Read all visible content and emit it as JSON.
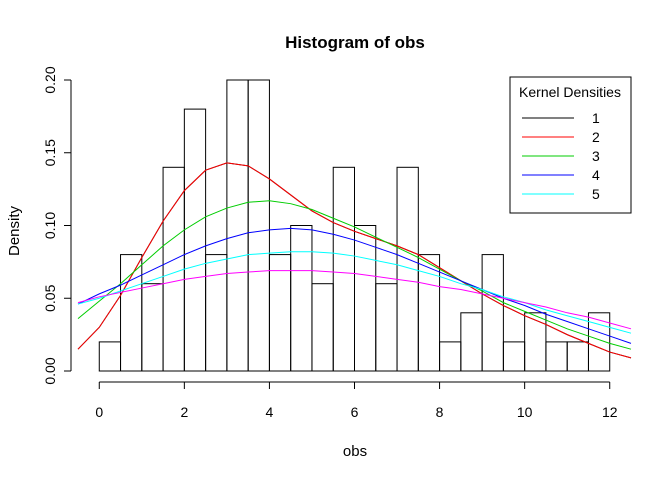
{
  "chart_data": {
    "type": "bar",
    "title": "Histogram of obs",
    "xlabel": "obs",
    "ylabel": "Density",
    "xlim": [
      -0.5,
      12.5
    ],
    "ylim": [
      0,
      0.2
    ],
    "x_ticks": [
      0,
      2,
      4,
      6,
      8,
      10,
      12
    ],
    "y_ticks": [
      0.0,
      0.05,
      0.1,
      0.15,
      0.2
    ],
    "y_tick_labels": [
      "0.00",
      "0.05",
      "0.10",
      "0.15",
      "0.20"
    ],
    "bin_width": 0.5,
    "bins": [
      {
        "x0": 0.0,
        "x1": 0.5,
        "density": 0.02
      },
      {
        "x0": 0.5,
        "x1": 1.0,
        "density": 0.08
      },
      {
        "x0": 1.0,
        "x1": 1.5,
        "density": 0.06
      },
      {
        "x0": 1.5,
        "x1": 2.0,
        "density": 0.14
      },
      {
        "x0": 2.0,
        "x1": 2.5,
        "density": 0.18
      },
      {
        "x0": 2.5,
        "x1": 3.0,
        "density": 0.08
      },
      {
        "x0": 3.0,
        "x1": 3.5,
        "density": 0.2
      },
      {
        "x0": 3.5,
        "x1": 4.0,
        "density": 0.2
      },
      {
        "x0": 4.0,
        "x1": 4.5,
        "density": 0.08
      },
      {
        "x0": 4.5,
        "x1": 5.0,
        "density": 0.1
      },
      {
        "x0": 5.0,
        "x1": 5.5,
        "density": 0.06
      },
      {
        "x0": 5.5,
        "x1": 6.0,
        "density": 0.14
      },
      {
        "x0": 6.0,
        "x1": 6.5,
        "density": 0.1
      },
      {
        "x0": 6.5,
        "x1": 7.0,
        "density": 0.06
      },
      {
        "x0": 7.0,
        "x1": 7.5,
        "density": 0.14
      },
      {
        "x0": 7.5,
        "x1": 8.0,
        "density": 0.08
      },
      {
        "x0": 8.0,
        "x1": 8.5,
        "density": 0.02
      },
      {
        "x0": 8.5,
        "x1": 9.0,
        "density": 0.04
      },
      {
        "x0": 9.0,
        "x1": 9.5,
        "density": 0.08
      },
      {
        "x0": 9.5,
        "x1": 10.0,
        "density": 0.02
      },
      {
        "x0": 10.0,
        "x1": 10.5,
        "density": 0.04
      },
      {
        "x0": 10.5,
        "x1": 11.0,
        "density": 0.02
      },
      {
        "x0": 11.0,
        "x1": 11.5,
        "density": 0.02
      },
      {
        "x0": 11.5,
        "x1": 12.0,
        "density": 0.04
      }
    ],
    "legend": {
      "title": "Kernel Densities",
      "placement": "top-right"
    },
    "series": [
      {
        "name": "1",
        "color": "#000000",
        "type": "line",
        "x": [
          -0.5,
          0,
          0.5,
          1,
          1.5,
          2,
          2.5,
          3,
          3.5,
          4,
          4.5,
          5,
          5.5,
          6,
          6.5,
          7,
          7.5,
          8,
          8.5,
          9,
          9.5,
          10,
          10.5,
          11,
          11.5,
          12,
          12.5
        ],
        "y": [
          0.015,
          0.03,
          0.052,
          0.078,
          0.103,
          0.124,
          0.138,
          0.143,
          0.141,
          0.132,
          0.121,
          0.11,
          0.102,
          0.096,
          0.091,
          0.086,
          0.08,
          0.071,
          0.062,
          0.053,
          0.045,
          0.038,
          0.032,
          0.025,
          0.019,
          0.013,
          0.009
        ]
      },
      {
        "name": "2",
        "color": "#ff0000",
        "type": "line",
        "x": [
          -0.5,
          0,
          0.5,
          1,
          1.5,
          2,
          2.5,
          3,
          3.5,
          4,
          4.5,
          5,
          5.5,
          6,
          6.5,
          7,
          7.5,
          8,
          8.5,
          9,
          9.5,
          10,
          10.5,
          11,
          11.5,
          12,
          12.5
        ],
        "y": [
          0.015,
          0.03,
          0.052,
          0.078,
          0.103,
          0.124,
          0.138,
          0.143,
          0.141,
          0.132,
          0.121,
          0.11,
          0.102,
          0.096,
          0.091,
          0.086,
          0.08,
          0.071,
          0.062,
          0.053,
          0.045,
          0.038,
          0.032,
          0.025,
          0.019,
          0.013,
          0.009
        ]
      },
      {
        "name": "3",
        "color": "#00cd00",
        "type": "line",
        "x": [
          -0.5,
          0,
          0.5,
          1,
          1.5,
          2,
          2.5,
          3,
          3.5,
          4,
          4.5,
          5,
          5.5,
          6,
          6.5,
          7,
          7.5,
          8,
          8.5,
          9,
          9.5,
          10,
          10.5,
          11,
          11.5,
          12,
          12.5
        ],
        "y": [
          0.036,
          0.048,
          0.06,
          0.073,
          0.086,
          0.097,
          0.106,
          0.112,
          0.116,
          0.117,
          0.115,
          0.111,
          0.105,
          0.099,
          0.092,
          0.085,
          0.078,
          0.07,
          0.062,
          0.055,
          0.047,
          0.041,
          0.035,
          0.029,
          0.024,
          0.019,
          0.015
        ]
      },
      {
        "name": "4",
        "color": "#0000ff",
        "type": "line",
        "x": [
          -0.5,
          0,
          0.5,
          1,
          1.5,
          2,
          2.5,
          3,
          3.5,
          4,
          4.5,
          5,
          5.5,
          6,
          6.5,
          7,
          7.5,
          8,
          8.5,
          9,
          9.5,
          10,
          10.5,
          11,
          11.5,
          12,
          12.5
        ],
        "y": [
          0.046,
          0.053,
          0.059,
          0.066,
          0.073,
          0.08,
          0.086,
          0.091,
          0.095,
          0.097,
          0.098,
          0.097,
          0.094,
          0.09,
          0.085,
          0.08,
          0.074,
          0.068,
          0.062,
          0.056,
          0.05,
          0.045,
          0.039,
          0.034,
          0.029,
          0.024,
          0.019
        ]
      },
      {
        "name": "5",
        "color": "#00ffff",
        "type": "line",
        "x": [
          -0.5,
          0,
          0.5,
          1,
          1.5,
          2,
          2.5,
          3,
          3.5,
          4,
          4.5,
          5,
          5.5,
          6,
          6.5,
          7,
          7.5,
          8,
          8.5,
          9,
          9.5,
          10,
          10.5,
          11,
          11.5,
          12,
          12.5
        ],
        "y": [
          0.046,
          0.05,
          0.055,
          0.06,
          0.065,
          0.07,
          0.074,
          0.077,
          0.08,
          0.081,
          0.082,
          0.082,
          0.081,
          0.079,
          0.076,
          0.073,
          0.069,
          0.065,
          0.06,
          0.056,
          0.051,
          0.047,
          0.042,
          0.038,
          0.034,
          0.03,
          0.026
        ]
      },
      {
        "name": "",
        "color": "#ff00ff",
        "type": "line",
        "x": [
          -0.5,
          0,
          0.5,
          1,
          1.5,
          2,
          2.5,
          3,
          3.5,
          4,
          4.5,
          5,
          5.5,
          6,
          6.5,
          7,
          7.5,
          8,
          8.5,
          9,
          9.5,
          10,
          10.5,
          11,
          11.5,
          12,
          12.5
        ],
        "y": [
          0.047,
          0.051,
          0.054,
          0.057,
          0.06,
          0.063,
          0.065,
          0.067,
          0.068,
          0.069,
          0.069,
          0.069,
          0.068,
          0.067,
          0.065,
          0.063,
          0.061,
          0.058,
          0.056,
          0.053,
          0.05,
          0.047,
          0.044,
          0.04,
          0.037,
          0.033,
          0.029
        ]
      }
    ]
  }
}
